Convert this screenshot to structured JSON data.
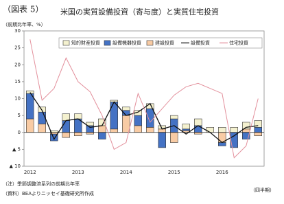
{
  "chart_data": {
    "type": "bar",
    "figure_label": "（図表 5）",
    "title": "米国の実質設備投資（寄与度）と実質住宅投資",
    "y_axis_label": "（前期比年率、%）",
    "x_axis_label": "（四半期）",
    "notes": [
      "（注）季節調整済系列の前期比年率",
      "（資料）BEAよりニッセイ基礎研究所作成"
    ],
    "categories": [
      "2012",
      null,
      null,
      null,
      "2013",
      null,
      null,
      null,
      "2014",
      null,
      null,
      null,
      "2015",
      null,
      null,
      null,
      "2016",
      null,
      null,
      null
    ],
    "series": [
      {
        "name": "知的財産投資",
        "type": "bar",
        "color": "#f4f1cf",
        "values": [
          0.8,
          1.5,
          0.5,
          2,
          1.5,
          1,
          2,
          0.5,
          1,
          1.5,
          1.5,
          1,
          1,
          1.5,
          2,
          1.5,
          1.5,
          1.5,
          2,
          2
        ]
      },
      {
        "name": "設備機器投資",
        "type": "bar",
        "color": "#4472c4",
        "values": [
          7.5,
          3.5,
          -2,
          3.5,
          4,
          2,
          -2,
          8,
          1.5,
          3,
          5.5,
          -4.5,
          4,
          0.5,
          2,
          0,
          -1,
          -4.5,
          -2,
          1.5
        ]
      },
      {
        "name": "建設投資",
        "type": "bar",
        "color": "#f8cba4",
        "values": [
          4,
          2.5,
          -0.5,
          -1.5,
          -1,
          -0.5,
          2,
          1,
          5,
          2,
          1.5,
          1,
          -3,
          0.5,
          -0.5,
          0,
          -3,
          0,
          1,
          -1
        ]
      },
      {
        "name": "設備投資",
        "type": "line",
        "color": "#111111",
        "values": [
          11.8,
          6.5,
          -2,
          3.5,
          4,
          1.5,
          2,
          9,
          5,
          6,
          8.5,
          1,
          2,
          -0.5,
          2,
          0,
          -3,
          -1,
          1.5,
          2
        ]
      },
      {
        "name": "住宅投資",
        "type": "line",
        "color": "#e3909c",
        "values": [
          27.5,
          9.5,
          13,
          22,
          15,
          12,
          5,
          -5,
          -3,
          11.5,
          3,
          7,
          11,
          13.5,
          14.5,
          13,
          11.5,
          -7.5,
          -4,
          10
        ]
      }
    ],
    "stack_order": [
      "建設投資",
      "設備機器投資",
      "知的財産投資"
    ],
    "ylim": [
      -10,
      30
    ],
    "yticks": [
      30,
      25,
      20,
      15,
      10,
      5,
      0,
      {
        "value": -5,
        "label": "▲ 5"
      },
      {
        "value": -10,
        "label": "▲ 10"
      }
    ],
    "grid": false
  }
}
